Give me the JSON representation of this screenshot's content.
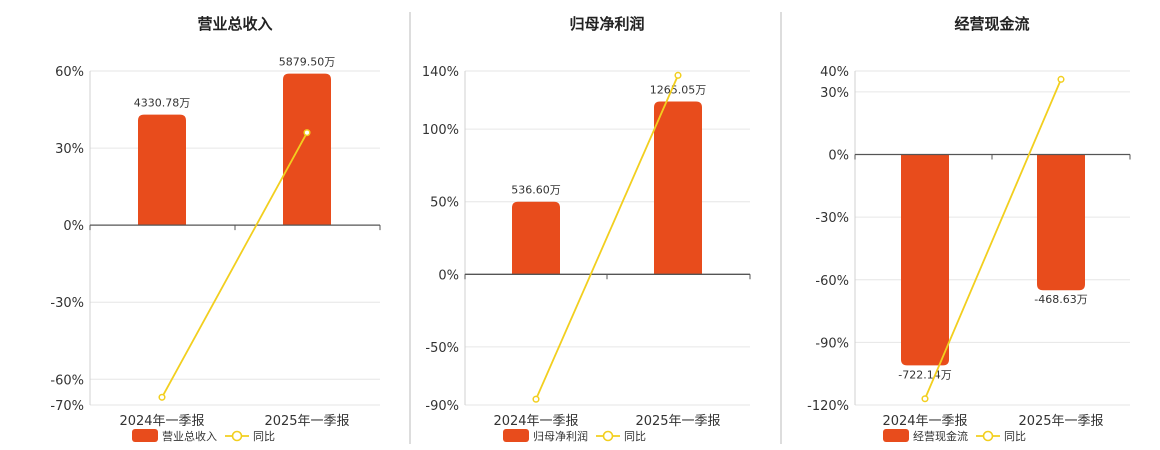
{
  "colors": {
    "bar": "#e84c1c",
    "line": "#f2cf1f",
    "axis": "#555555",
    "grid": "#e6e6e6",
    "divider": "#bbbbbb"
  },
  "chart_data": [
    {
      "type": "bar",
      "title": "营业总收入",
      "categories": [
        "2024年一季报",
        "2025年一季报"
      ],
      "ylim": [
        -70,
        60
      ],
      "yticks": [
        60,
        30,
        0,
        -30,
        -60,
        -70
      ],
      "ytick_labels": [
        "60%",
        "30%",
        "0%",
        "-30%",
        "-60%",
        "-70%"
      ],
      "series": [
        {
          "name": "营业总收入",
          "kind": "bar",
          "values": [
            43,
            59
          ],
          "labels": [
            "4330.78万",
            "5879.50万"
          ]
        },
        {
          "name": "同比",
          "kind": "line",
          "values": [
            -67,
            36
          ]
        }
      ],
      "legend_position": "bottom"
    },
    {
      "type": "bar",
      "title": "归母净利润",
      "categories": [
        "2024年一季报",
        "2025年一季报"
      ],
      "ylim": [
        -90,
        140
      ],
      "yticks": [
        140,
        100,
        50,
        0,
        -50,
        -90
      ],
      "ytick_labels": [
        "140%",
        "100%",
        "50%",
        "0%",
        "-50%",
        "-90%"
      ],
      "series": [
        {
          "name": "归母净利润",
          "kind": "bar",
          "values": [
            50,
            119
          ],
          "labels": [
            "536.60万",
            "1265.05万"
          ]
        },
        {
          "name": "同比",
          "kind": "line",
          "values": [
            -86,
            137
          ]
        }
      ],
      "legend_position": "bottom"
    },
    {
      "type": "bar",
      "title": "经营现金流",
      "categories": [
        "2024年一季报",
        "2025年一季报"
      ],
      "ylim": [
        -120,
        40
      ],
      "yticks": [
        40,
        30,
        0,
        -30,
        -60,
        -90,
        -120
      ],
      "ytick_labels": [
        "40%",
        "30%",
        "0%",
        "-30%",
        "-60%",
        "-90%",
        "-120%"
      ],
      "series": [
        {
          "name": "经营现金流",
          "kind": "bar",
          "values": [
            -101,
            -65
          ],
          "labels": [
            "-722.14万",
            "-468.63万"
          ]
        },
        {
          "name": "同比",
          "kind": "line",
          "values": [
            -117,
            36
          ]
        }
      ],
      "legend_position": "bottom"
    }
  ]
}
